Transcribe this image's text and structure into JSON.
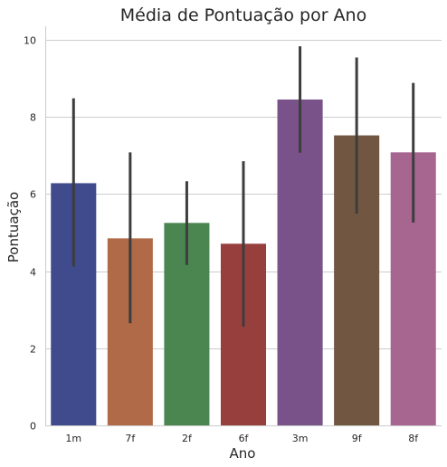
{
  "chart_data": {
    "type": "bar",
    "title": "Média de Pontuação por Ano",
    "xlabel": "Ano",
    "ylabel": "Pontuação",
    "categories": [
      "1m",
      "7f",
      "2f",
      "6f",
      "3m",
      "9f",
      "8f"
    ],
    "values": [
      6.28,
      4.85,
      5.25,
      4.71,
      8.45,
      7.52,
      7.08
    ],
    "errors": [
      [
        4.12,
        8.48
      ],
      [
        2.65,
        7.08
      ],
      [
        4.16,
        6.33
      ],
      [
        2.56,
        6.85
      ],
      [
        7.07,
        9.83
      ],
      [
        5.49,
        9.54
      ],
      [
        5.26,
        8.88
      ]
    ],
    "colors": [
      "#3f4b8c",
      "#b06a48",
      "#4b8650",
      "#973f3d",
      "#795289",
      "#715742",
      "#a6668f"
    ],
    "ylim": [
      0,
      10.35
    ],
    "yticks": [
      0,
      2,
      4,
      6,
      8,
      10
    ],
    "grid": true,
    "legend": "none"
  }
}
